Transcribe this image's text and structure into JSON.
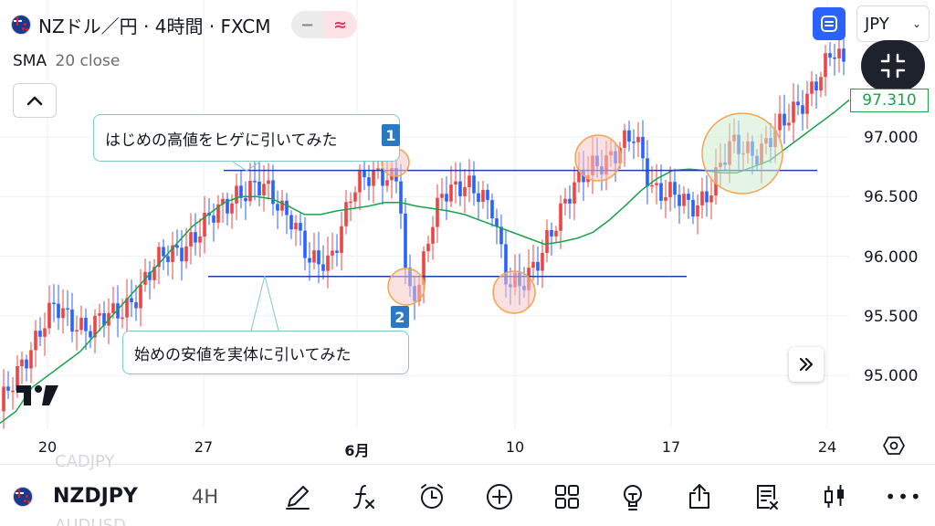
{
  "header": {
    "title": "NZドル／円 · 4時間 · FXCM",
    "minus_glyph": "−",
    "wave_glyph": "≈",
    "currency": "JPY",
    "currency_chevron": "⌄"
  },
  "indicator": {
    "name": "SMA",
    "params": "20 close"
  },
  "current_price": "97.310",
  "price_axis": [
    "97.000",
    "96.500",
    "96.000",
    "95.500",
    "95.000"
  ],
  "time_axis": [
    "20",
    "27",
    "6月",
    "10",
    "17",
    "24"
  ],
  "annotations": {
    "top_text": "はじめの高値をヒゲに引いてみた",
    "bottom_text": "始めの安値を実体に引いてみた",
    "badge_top": "1",
    "badge_bottom": "2"
  },
  "colors": {
    "up": "#ef4444",
    "down": "#2962ff",
    "sma": "#16a34a",
    "hline": "#1e3fae",
    "accent": "#2962ff",
    "circle_red": "#f7c7c7",
    "circle_green": "#cfeccf",
    "circle_stroke": "#f5a44a"
  },
  "bottom_bar": {
    "symbol": "NZDJPY",
    "interval": "4H",
    "ghost_top": "CADJPY",
    "ghost_bottom": "AUDUSD",
    "more": "•••",
    "icons": [
      "draw-icon",
      "indicators-icon",
      "alert-icon",
      "add-icon",
      "layout-icon",
      "ideas-icon",
      "share-icon",
      "report-icon",
      "chart-type-icon",
      "more-icon"
    ]
  },
  "chart_data": {
    "type": "candlestick",
    "symbol": "NZDJPY",
    "interval": "4H",
    "x_labels": [
      "20",
      "27",
      "6月",
      "10",
      "17",
      "24"
    ],
    "y_ticks": [
      97.0,
      96.5,
      96.0,
      95.5,
      95.0
    ],
    "ylim": [
      94.6,
      98.0
    ],
    "sma_period": 20,
    "last_price": 97.31,
    "horizontal_lines": [
      96.72,
      95.83
    ],
    "sma_path": [
      [
        94.6,
        94.7
      ],
      [
        94.9,
        95.0
      ],
      [
        95.1,
        95.2
      ],
      [
        95.35,
        95.5
      ],
      [
        95.65,
        95.8
      ],
      [
        95.95,
        96.1
      ],
      [
        96.25,
        96.35
      ],
      [
        96.45,
        96.5
      ],
      [
        96.5,
        96.48
      ],
      [
        96.42,
        96.35
      ],
      [
        96.35,
        96.38
      ],
      [
        96.4,
        96.42
      ],
      [
        96.45,
        96.45
      ],
      [
        96.42,
        96.4
      ],
      [
        96.38,
        96.35
      ],
      [
        96.3,
        96.25
      ],
      [
        96.2,
        96.15
      ],
      [
        96.1,
        96.12
      ],
      [
        96.15,
        96.2
      ],
      [
        96.3,
        96.42
      ],
      [
        96.55,
        96.65
      ],
      [
        96.72,
        96.73
      ],
      [
        96.72,
        96.7
      ],
      [
        96.7,
        96.75
      ],
      [
        96.8,
        96.9
      ],
      [
        97.0,
        97.1
      ],
      [
        97.2,
        97.31
      ]
    ]
  }
}
